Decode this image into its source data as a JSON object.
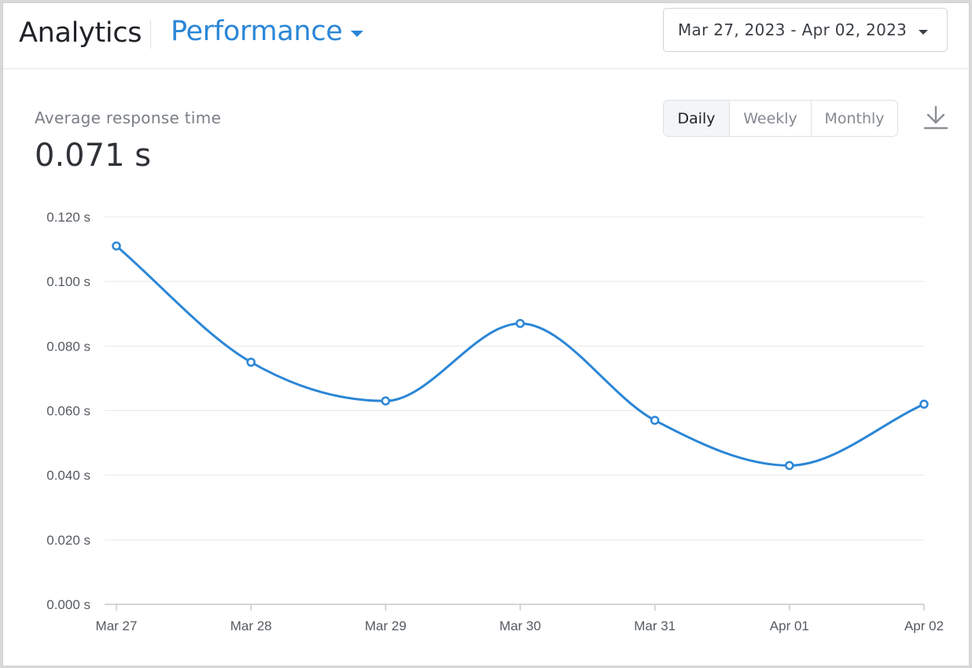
{
  "header": {
    "app_title": "Analytics",
    "section": "Performance",
    "date_range": "Mar 27, 2023 - Apr 02, 2023"
  },
  "metric": {
    "label": "Average response time",
    "value": "0.071 s"
  },
  "period_toggle": {
    "options": [
      "Daily",
      "Weekly",
      "Monthly"
    ],
    "selected": "Daily"
  },
  "icons": {
    "download": "download-icon",
    "caret": "chevron-down-icon"
  },
  "colors": {
    "accent": "#2b86d6",
    "series": "#2b86d6",
    "grid": "#e8e8e8"
  },
  "chart_data": {
    "type": "line",
    "categories": [
      "Mar 27",
      "Mar 28",
      "Mar 29",
      "Mar 30",
      "Mar 31",
      "Apr 01",
      "Apr 02"
    ],
    "values": [
      0.111,
      0.075,
      0.063,
      0.087,
      0.057,
      0.043,
      0.062
    ],
    "ylim": [
      0,
      0.12
    ],
    "yticks": [
      0.0,
      0.02,
      0.04,
      0.06,
      0.08,
      0.1,
      0.12
    ],
    "ytick_labels": [
      "0.000 s",
      "0.020 s",
      "0.040 s",
      "0.060 s",
      "0.080 s",
      "0.100 s",
      "0.120 s"
    ],
    "grid": true,
    "smooth": true
  }
}
